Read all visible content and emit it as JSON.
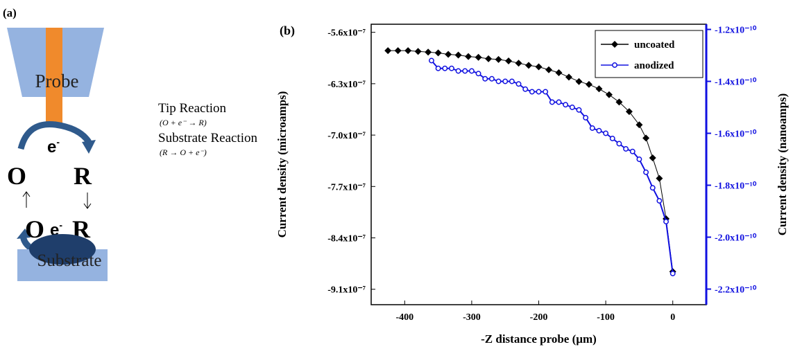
{
  "panel_a": {
    "label": "(a)",
    "probe": "Probe",
    "electron_top": {
      "text": "e",
      "sup": "-"
    },
    "o_top": "O",
    "r_top": "R",
    "o_bottom": "O",
    "electron_bottom": {
      "text": "e",
      "sup": "-"
    },
    "r_bottom": "R",
    "substrate": "Substrate",
    "tip_reaction": "Tip Reaction",
    "tip_formula": "(O + e⁻ → R)",
    "substrate_reaction": "Substrate Reaction",
    "substrate_formula": "(R → O + e⁻)"
  },
  "chart_data": {
    "type": "line",
    "panel_label": "(b)",
    "x_label": "-Z distance probe (µm)",
    "y_label": "Current density (microamps)",
    "y2_label": "Current density (nanoamps)",
    "xlim": [
      -450,
      50
    ],
    "xticks": [
      -400,
      -300,
      -200,
      -100,
      0
    ],
    "ylim": [
      -9.31e-07,
      -5.49e-07
    ],
    "yticks": [
      {
        "value": -5.6e-07,
        "label": "-5.6x10⁻⁷"
      },
      {
        "value": -6.3e-07,
        "label": "-6.3x10⁻⁷"
      },
      {
        "value": -7e-07,
        "label": "-7.0x10⁻⁷"
      },
      {
        "value": -7.7e-07,
        "label": "-7.7x10⁻⁷"
      },
      {
        "value": -8.4e-07,
        "label": "-8.4x10⁻⁷"
      },
      {
        "value": -9.1e-07,
        "label": "-9.1x10⁻⁷"
      }
    ],
    "y2lim": [
      -2.26e-10,
      -1.18e-10
    ],
    "y2ticks": [
      {
        "value": -1.2e-10,
        "label": "-1.2x10⁻¹⁰"
      },
      {
        "value": -1.4e-10,
        "label": "-1.4x10⁻¹⁰"
      },
      {
        "value": -1.6e-10,
        "label": "-1.6x10⁻¹⁰"
      },
      {
        "value": -1.8e-10,
        "label": "-1.8x10⁻¹⁰"
      },
      {
        "value": -2e-10,
        "label": "-2.0x10⁻¹⁰"
      },
      {
        "value": -2.2e-10,
        "label": "-2.2x10⁻¹⁰"
      }
    ],
    "y2color": "#1010e0",
    "legend": "upper right",
    "series": [
      {
        "name": "uncoated",
        "color": "#000000",
        "marker": "diamond",
        "x": [
          -425,
          -410,
          -395,
          -380,
          -365,
          -350,
          -335,
          -320,
          -305,
          -290,
          -275,
          -260,
          -245,
          -230,
          -215,
          -200,
          -185,
          -170,
          -155,
          -140,
          -125,
          -110,
          -95,
          -80,
          -65,
          -50,
          -40,
          -30,
          -20,
          -10,
          0
        ],
        "values": [
          -5.85e-07,
          -5.85e-07,
          -5.85e-07,
          -5.86e-07,
          -5.87e-07,
          -5.88e-07,
          -5.9e-07,
          -5.91e-07,
          -5.93e-07,
          -5.94e-07,
          -5.96e-07,
          -5.97e-07,
          -5.99e-07,
          -6.02e-07,
          -6.05e-07,
          -6.07e-07,
          -6.11e-07,
          -6.15e-07,
          -6.21e-07,
          -6.27e-07,
          -6.31e-07,
          -6.37e-07,
          -6.45e-07,
          -6.55e-07,
          -6.68e-07,
          -6.86e-07,
          -7.04e-07,
          -7.31e-07,
          -7.59e-07,
          -8.14e-07,
          -8.86e-07
        ]
      },
      {
        "name": "anodized",
        "color": "#1010e0",
        "marker": "circle",
        "axis": "y2",
        "x": [
          -360,
          -350,
          -340,
          -330,
          -320,
          -310,
          -300,
          -290,
          -280,
          -270,
          -260,
          -250,
          -240,
          -230,
          -220,
          -210,
          -200,
          -190,
          -180,
          -170,
          -160,
          -150,
          -140,
          -130,
          -120,
          -110,
          -100,
          -90,
          -80,
          -70,
          -60,
          -50,
          -40,
          -30,
          -20,
          -10,
          0
        ],
        "values": [
          -1.32e-10,
          -1.35e-10,
          -1.35e-10,
          -1.35e-10,
          -1.36e-10,
          -1.36e-10,
          -1.36e-10,
          -1.37e-10,
          -1.39e-10,
          -1.39e-10,
          -1.4e-10,
          -1.4e-10,
          -1.4e-10,
          -1.41e-10,
          -1.43e-10,
          -1.44e-10,
          -1.44e-10,
          -1.44e-10,
          -1.48e-10,
          -1.48e-10,
          -1.49e-10,
          -1.5e-10,
          -1.51e-10,
          -1.54e-10,
          -1.58e-10,
          -1.59e-10,
          -1.6e-10,
          -1.62e-10,
          -1.64e-10,
          -1.66e-10,
          -1.67e-10,
          -1.7e-10,
          -1.75e-10,
          -1.81e-10,
          -1.86e-10,
          -1.94e-10,
          -2.14e-10
        ]
      }
    ]
  }
}
